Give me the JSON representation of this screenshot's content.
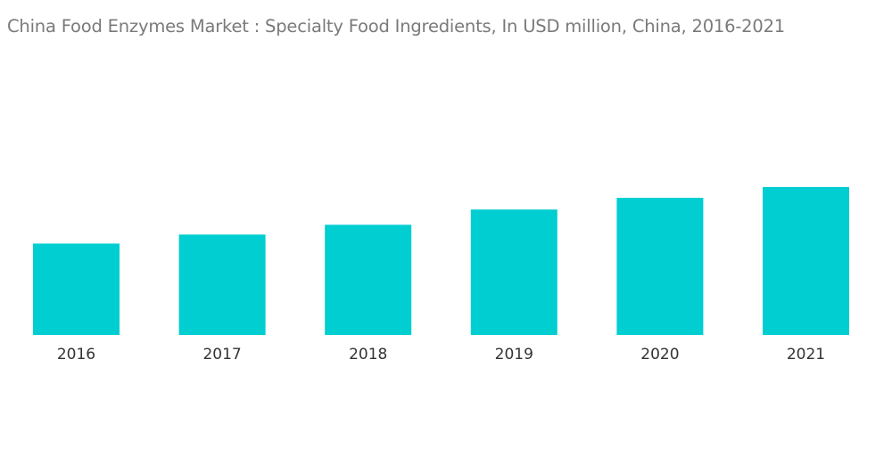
{
  "chart_data": {
    "type": "bar",
    "title": "China Food Enzymes Market :  Specialty Food Ingredients, In USD million,  China, 2016-2021",
    "xlabel": "",
    "ylabel": "",
    "categories": [
      "2016",
      "2017",
      "2018",
      "2019",
      "2020",
      "2021"
    ],
    "values": [
      102,
      112,
      123,
      140,
      153,
      165
    ],
    "ylim": [
      0,
      165
    ],
    "grid": false,
    "legend": "none",
    "bar_color": "#00CED1"
  }
}
